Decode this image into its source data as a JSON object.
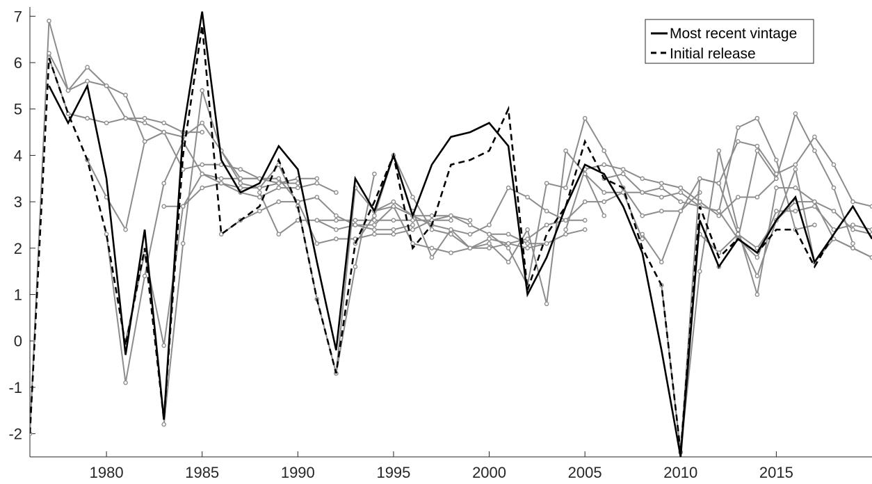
{
  "chart_data": {
    "type": "line",
    "title": "",
    "xlabel": "",
    "ylabel": "",
    "xlim": [
      1976,
      2020
    ],
    "ylim": [
      -2.5,
      7.2
    ],
    "xticks": [
      1980,
      1985,
      1990,
      1995,
      2000,
      2005,
      2010,
      2015
    ],
    "yticks": [
      -2,
      -1,
      0,
      1,
      2,
      3,
      4,
      5,
      6,
      7
    ],
    "grid": false,
    "legend_position": "top-right",
    "legend": [
      {
        "label": "Most recent vintage",
        "style": "solid",
        "color": "#000000"
      },
      {
        "label": "Initial release",
        "style": "dashed",
        "color": "#000000"
      }
    ],
    "series": [
      {
        "name": "Most recent vintage",
        "style": "solid",
        "color": "#000000",
        "x": [
          1977,
          1978,
          1979,
          1980,
          1981,
          1982,
          1983,
          1984,
          1985,
          1986,
          1987,
          1988,
          1989,
          1990,
          1991,
          1992,
          1993,
          1994,
          1995,
          1996,
          1997,
          1998,
          1999,
          2000,
          2001,
          2002,
          2003,
          2004,
          2005,
          2006,
          2007,
          2008,
          2009,
          2010,
          2011,
          2012,
          2013,
          2014,
          2015,
          2016,
          2017,
          2018,
          2019,
          2020
        ],
        "y": [
          5.5,
          4.7,
          5.5,
          3.5,
          -0.3,
          2.4,
          -1.7,
          4.5,
          7.1,
          3.9,
          3.2,
          3.4,
          4.2,
          3.7,
          1.7,
          -0.2,
          3.5,
          2.8,
          4.0,
          2.7,
          3.8,
          4.4,
          4.5,
          4.7,
          4.2,
          1.0,
          1.8,
          2.9,
          3.8,
          3.6,
          2.9,
          1.9,
          -0.2,
          -2.5,
          2.6,
          1.6,
          2.2,
          1.9,
          2.6,
          3.1,
          1.7,
          2.3,
          2.9,
          2.2
        ]
      },
      {
        "name": "Initial release",
        "style": "dashed",
        "color": "#000000",
        "x": [
          1976,
          1977,
          1978,
          1979,
          1980,
          1981,
          1982,
          1983,
          1984,
          1985,
          1986,
          1987,
          1988,
          1989,
          1990,
          1991,
          1992,
          1993,
          1994,
          1995,
          1996,
          1997,
          1998,
          1999,
          2000,
          2001,
          2002,
          2003,
          2004,
          2005,
          2006,
          2007,
          2008,
          2009,
          2010,
          2011,
          2012,
          2013,
          2014,
          2015,
          2016,
          2017,
          2018,
          2019
        ],
        "y": [
          -2.0,
          6.1,
          4.9,
          3.9,
          2.3,
          -0.1,
          2.0,
          -1.7,
          4.0,
          6.8,
          2.3,
          2.6,
          2.9,
          3.9,
          2.9,
          0.9,
          -0.7,
          2.1,
          3.0,
          4.0,
          2.0,
          2.5,
          3.8,
          3.9,
          4.1,
          5.0,
          1.1,
          2.3,
          2.9,
          4.3,
          3.5,
          3.3,
          2.0,
          1.2,
          -2.4,
          2.9,
          1.8,
          2.2,
          1.9,
          2.4,
          2.4,
          1.6,
          2.3,
          2.9
        ]
      },
      {
        "name": "",
        "style": "solid-marker",
        "color": "#8c8c8c",
        "x": [
          1976,
          1977,
          1978,
          1979,
          1980,
          1981,
          1982,
          1983
        ],
        "y": [
          -2.0,
          6.9,
          5.4,
          5.9,
          5.5,
          5.3,
          4.3,
          4.5
        ]
      },
      {
        "name": "",
        "style": "solid-marker",
        "color": "#8c8c8c",
        "x": [
          1977,
          1978,
          1979,
          1980,
          1981,
          1982,
          1983,
          1984,
          1985
        ],
        "y": [
          6.2,
          5.4,
          5.6,
          5.5,
          4.8,
          4.8,
          4.7,
          4.5,
          4.5
        ]
      },
      {
        "name": "",
        "style": "solid-marker",
        "color": "#8c8c8c",
        "x": [
          1977,
          1978,
          1979,
          1980,
          1981,
          1982,
          1983,
          1984,
          1985,
          1986,
          1987,
          1988,
          1989
        ],
        "y": [
          6.1,
          4.9,
          4.8,
          4.7,
          4.8,
          4.7,
          4.5,
          3.7,
          3.8,
          3.8,
          3.7,
          3.5,
          3.5
        ]
      },
      {
        "name": "",
        "style": "solid-marker",
        "color": "#8c8c8c",
        "x": [
          1979,
          1980,
          1981,
          1982,
          1983,
          1984,
          1985,
          1986,
          1987,
          1988,
          1989,
          1990
        ],
        "y": [
          3.9,
          3.1,
          2.4,
          4.3,
          4.5,
          4.4,
          4.7,
          4.1,
          3.5,
          3.5,
          3.4,
          3.4
        ]
      },
      {
        "name": "",
        "style": "solid-marker",
        "color": "#8c8c8c",
        "x": [
          1980,
          1981,
          1982,
          1983,
          1984,
          1985,
          1986,
          1987,
          1988,
          1989,
          1990,
          1991
        ],
        "y": [
          2.3,
          -0.9,
          1.4,
          3.4,
          4.3,
          3.6,
          3.4,
          3.3,
          3.3,
          3.4,
          3.5,
          3.5
        ]
      },
      {
        "name": "",
        "style": "solid-marker",
        "color": "#8c8c8c",
        "x": [
          1981,
          1982,
          1983,
          1984,
          1985,
          1986,
          1987,
          1988,
          1989,
          1990,
          1991,
          1992
        ],
        "y": [
          0.0,
          1.9,
          -0.1,
          2.9,
          3.3,
          3.4,
          3.2,
          3.1,
          3.3,
          3.3,
          3.4,
          3.2
        ]
      },
      {
        "name": "",
        "style": "solid-marker",
        "color": "#8c8c8c",
        "x": [
          1983,
          1984,
          1985,
          1986,
          1987,
          1988,
          1989,
          1990,
          1991,
          1992,
          1993,
          1994
        ],
        "y": [
          -1.8,
          2.1,
          5.4,
          4.1,
          3.4,
          3.3,
          3.8,
          2.9,
          0.9,
          -0.7,
          1.6,
          3.6
        ]
      },
      {
        "name": "",
        "style": "solid-marker",
        "color": "#8c8c8c",
        "x": [
          1983,
          1984,
          1985,
          1986,
          1987,
          1988,
          1989,
          1990,
          1991,
          1992,
          1993,
          1994,
          1995,
          1996
        ],
        "y": [
          2.9,
          2.9,
          3.6,
          3.5,
          3.5,
          3.5,
          3.5,
          3.0,
          3.1,
          2.7,
          2.5,
          2.4,
          2.4,
          2.5
        ]
      },
      {
        "name": "",
        "style": "solid-marker",
        "color": "#8c8c8c",
        "x": [
          1986,
          1987,
          1988,
          1989,
          1990,
          1991,
          1992,
          1993,
          1994,
          1995,
          1996,
          1997,
          1998
        ],
        "y": [
          2.3,
          2.6,
          2.8,
          3.0,
          3.0,
          2.1,
          2.2,
          2.2,
          2.3,
          2.3,
          2.4,
          2.6,
          2.6
        ]
      },
      {
        "name": "",
        "style": "solid-marker",
        "color": "#8c8c8c",
        "x": [
          1988,
          1989,
          1990,
          1991,
          1992,
          1993,
          1994,
          1995,
          1996,
          1997,
          1998,
          1999
        ],
        "y": [
          3.2,
          2.3,
          2.6,
          2.6,
          2.6,
          2.6,
          2.6,
          2.6,
          2.6,
          2.6,
          2.7,
          2.6
        ]
      },
      {
        "name": "",
        "style": "solid-marker",
        "color": "#8c8c8c",
        "x": [
          1991,
          1992,
          1993,
          1994,
          1995,
          1996,
          1997,
          1998,
          1999,
          2000,
          2001,
          2002,
          2003
        ],
        "y": [
          2.6,
          2.4,
          2.5,
          2.5,
          2.9,
          2.7,
          2.7,
          2.7,
          2.5,
          2.3,
          2.3,
          2.1,
          2.1
        ]
      },
      {
        "name": "",
        "style": "solid-marker",
        "color": "#8c8c8c",
        "x": [
          1992,
          1993,
          1994,
          1995,
          1996,
          1997,
          1998,
          1999,
          2000,
          2001,
          2002,
          2003,
          2004,
          2005
        ],
        "y": [
          -0.7,
          3.3,
          2.8,
          3.0,
          2.7,
          2.5,
          2.4,
          2.0,
          2.2,
          2.1,
          2.0,
          2.1,
          2.3,
          2.4
        ]
      },
      {
        "name": "",
        "style": "solid-marker",
        "color": "#8c8c8c",
        "x": [
          1993,
          1994,
          1995,
          1996,
          1997,
          1998,
          1999,
          2000,
          2001,
          2002,
          2003,
          2004,
          2005
        ],
        "y": [
          2.1,
          2.7,
          4.0,
          3.1,
          2.4,
          2.3,
          2.0,
          2.0,
          2.1,
          2.2,
          2.5,
          2.6,
          2.6
        ]
      },
      {
        "name": "",
        "style": "solid-marker",
        "color": "#8c8c8c",
        "x": [
          1994,
          1995,
          1996,
          1997,
          1998,
          1999,
          2000,
          2001,
          2002,
          2003,
          2004,
          2005,
          2006
        ],
        "y": [
          2.8,
          2.9,
          2.1,
          2.0,
          1.9,
          2.0,
          2.1,
          1.7,
          2.4,
          0.8,
          4.1,
          3.6,
          2.7
        ]
      },
      {
        "name": "",
        "style": "solid-marker",
        "color": "#8c8c8c",
        "x": [
          1996,
          1997,
          1998,
          1999,
          2000,
          2001,
          2002,
          2003,
          2004,
          2005,
          2006,
          2007,
          2008
        ],
        "y": [
          2.8,
          1.8,
          2.4,
          2.3,
          2.5,
          3.3,
          3.1,
          2.8,
          2.6,
          3.0,
          3.0,
          3.2,
          2.2
        ]
      },
      {
        "name": "",
        "style": "solid-marker",
        "color": "#8c8c8c",
        "x": [
          2000,
          2001,
          2002,
          2003,
          2004,
          2005,
          2006,
          2007,
          2008,
          2009,
          2010,
          2011
        ],
        "y": [
          2.3,
          2.0,
          1.2,
          3.4,
          3.3,
          4.8,
          4.1,
          3.3,
          2.7,
          2.8,
          2.8,
          3.2
        ]
      },
      {
        "name": "",
        "style": "solid-marker",
        "color": "#8c8c8c",
        "x": [
          2004,
          2005,
          2006,
          2007,
          2008,
          2009,
          2010,
          2011,
          2012,
          2013,
          2014,
          2015
        ],
        "y": [
          2.4,
          3.7,
          3.8,
          3.7,
          3.5,
          3.4,
          3.3,
          3.0,
          2.7,
          3.1,
          3.1,
          3.5
        ]
      },
      {
        "name": "",
        "style": "solid-marker",
        "color": "#8c8c8c",
        "x": [
          2005,
          2006,
          2007,
          2008,
          2009,
          2010,
          2011,
          2012,
          2013,
          2014,
          2015,
          2016,
          2017
        ],
        "y": [
          3.6,
          3.2,
          3.2,
          3.2,
          3.3,
          3.0,
          2.9,
          2.8,
          4.6,
          4.8,
          3.9,
          2.4,
          2.5
        ]
      },
      {
        "name": "",
        "style": "solid-marker",
        "color": "#8c8c8c",
        "x": [
          2006,
          2007,
          2008,
          2009,
          2010,
          2011,
          2012,
          2013,
          2014,
          2015,
          2016,
          2017,
          2018,
          2019
        ],
        "y": [
          3.5,
          3.6,
          3.2,
          3.1,
          3.2,
          2.9,
          2.8,
          2.2,
          4.1,
          3.5,
          4.9,
          4.1,
          3.3,
          2.1
        ]
      },
      {
        "name": "",
        "style": "solid-marker",
        "color": "#8c8c8c",
        "x": [
          2008,
          2009,
          2010,
          2011,
          2012,
          2013,
          2014,
          2015,
          2016,
          2017,
          2018,
          2019,
          2020
        ],
        "y": [
          2.3,
          1.7,
          2.8,
          3.5,
          3.4,
          4.3,
          4.2,
          3.6,
          3.8,
          4.4,
          3.8,
          3.0,
          2.9
        ]
      },
      {
        "name": "",
        "style": "solid-marker",
        "color": "#8c8c8c",
        "x": [
          2009,
          2010,
          2011,
          2012,
          2013,
          2014,
          2015,
          2016,
          2017,
          2018,
          2019,
          2020
        ],
        "y": [
          1.2,
          -2.4,
          1.5,
          4.1,
          2.4,
          1.0,
          3.3,
          3.3,
          3.0,
          2.8,
          2.4,
          2.3
        ]
      },
      {
        "name": "",
        "style": "solid-marker",
        "color": "#8c8c8c",
        "x": [
          2010,
          2011,
          2012,
          2013,
          2014,
          2015,
          2016,
          2017,
          2018,
          2019,
          2020
        ],
        "y": [
          -2.4,
          3.5,
          3.4,
          2.3,
          1.4,
          2.6,
          3.0,
          3.0,
          2.2,
          2.0,
          1.8
        ]
      },
      {
        "name": "",
        "style": "solid-marker",
        "color": "#8c8c8c",
        "x": [
          2011,
          2012,
          2013,
          2014,
          2015,
          2016,
          2017,
          2018,
          2019,
          2020
        ],
        "y": [
          2.3,
          1.9,
          2.3,
          2.0,
          2.6,
          3.7,
          1.7,
          2.2,
          2.0,
          1.8
        ]
      },
      {
        "name": "",
        "style": "solid-marker",
        "color": "#8c8c8c",
        "x": [
          2012,
          2013,
          2014,
          2015,
          2016,
          2017,
          2018,
          2019,
          2020
        ],
        "y": [
          1.6,
          2.2,
          1.8,
          2.8,
          2.8,
          2.9,
          2.4,
          2.5,
          2.4
        ]
      }
    ]
  }
}
